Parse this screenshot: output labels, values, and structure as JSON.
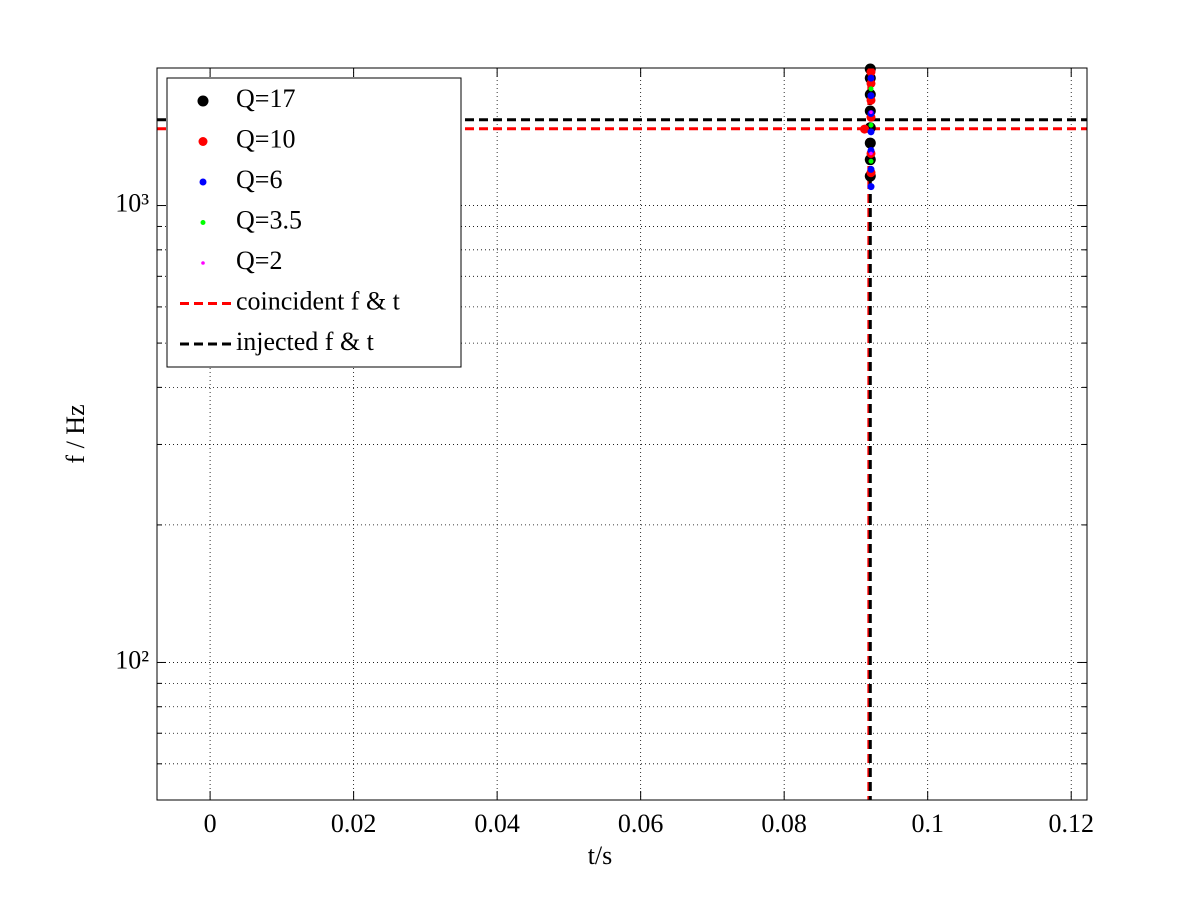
{
  "chart_data": {
    "type": "scatter",
    "x_label": "t/s",
    "y_label": "f / Hz",
    "xlim": [
      -0.0074,
      0.1222
    ],
    "ylim": [
      50,
      2000
    ],
    "y_log_scale": true,
    "grid": true,
    "xticks": [
      0,
      0.02,
      0.04,
      0.06,
      0.08,
      0.1,
      0.12
    ],
    "yticks": [
      {
        "value": 100,
        "label": "10²"
      },
      {
        "value": 1000,
        "label": "10³"
      }
    ],
    "yminorticks": [
      60,
      70,
      80,
      90,
      200,
      300,
      400,
      500,
      600,
      700,
      800,
      900,
      2000
    ],
    "legend": "upper left",
    "series": [
      {
        "name": "Q=17",
        "color": "#000000",
        "size": 5.5,
        "x": [
          0.092,
          0.092,
          0.092,
          0.092,
          0.092,
          0.092,
          0.092,
          0.092
        ],
        "values": [
          1160,
          1260,
          1370,
          1480,
          1610,
          1750,
          1900,
          1990
        ]
      },
      {
        "name": "Q=10",
        "color": "#ff0000",
        "size": 4.5,
        "x": [
          0.0921,
          0.0921,
          0.0912,
          0.0921,
          0.0921,
          0.0921,
          0.0921
        ],
        "values": [
          1180,
          1300,
          1470,
          1560,
          1700,
          1850,
          1960
        ]
      },
      {
        "name": "Q=6",
        "color": "#0000ff",
        "size": 3.5,
        "x": [
          0.0921,
          0.0921,
          0.0921,
          0.0921,
          0.0921,
          0.0921,
          0.0921
        ],
        "values": [
          1100,
          1200,
          1320,
          1450,
          1590,
          1740,
          1900
        ]
      },
      {
        "name": "Q=3.5",
        "color": "#00ff00",
        "size": 2.5,
        "x": [
          0.0921,
          0.0921,
          0.0921
        ],
        "values": [
          1250,
          1500,
          1800
        ]
      },
      {
        "name": "Q=2",
        "color": "#ff00ff",
        "size": 1.8,
        "x": [
          0.0921,
          0.0921
        ],
        "values": [
          1300,
          1600
        ]
      }
    ],
    "lines": [
      {
        "name": "coincident f & t",
        "color": "#ff0000",
        "f": 1473,
        "t": 0.0918
      },
      {
        "name": "injected f & t",
        "color": "#000000",
        "f": 1541,
        "t": 0.092
      }
    ]
  }
}
